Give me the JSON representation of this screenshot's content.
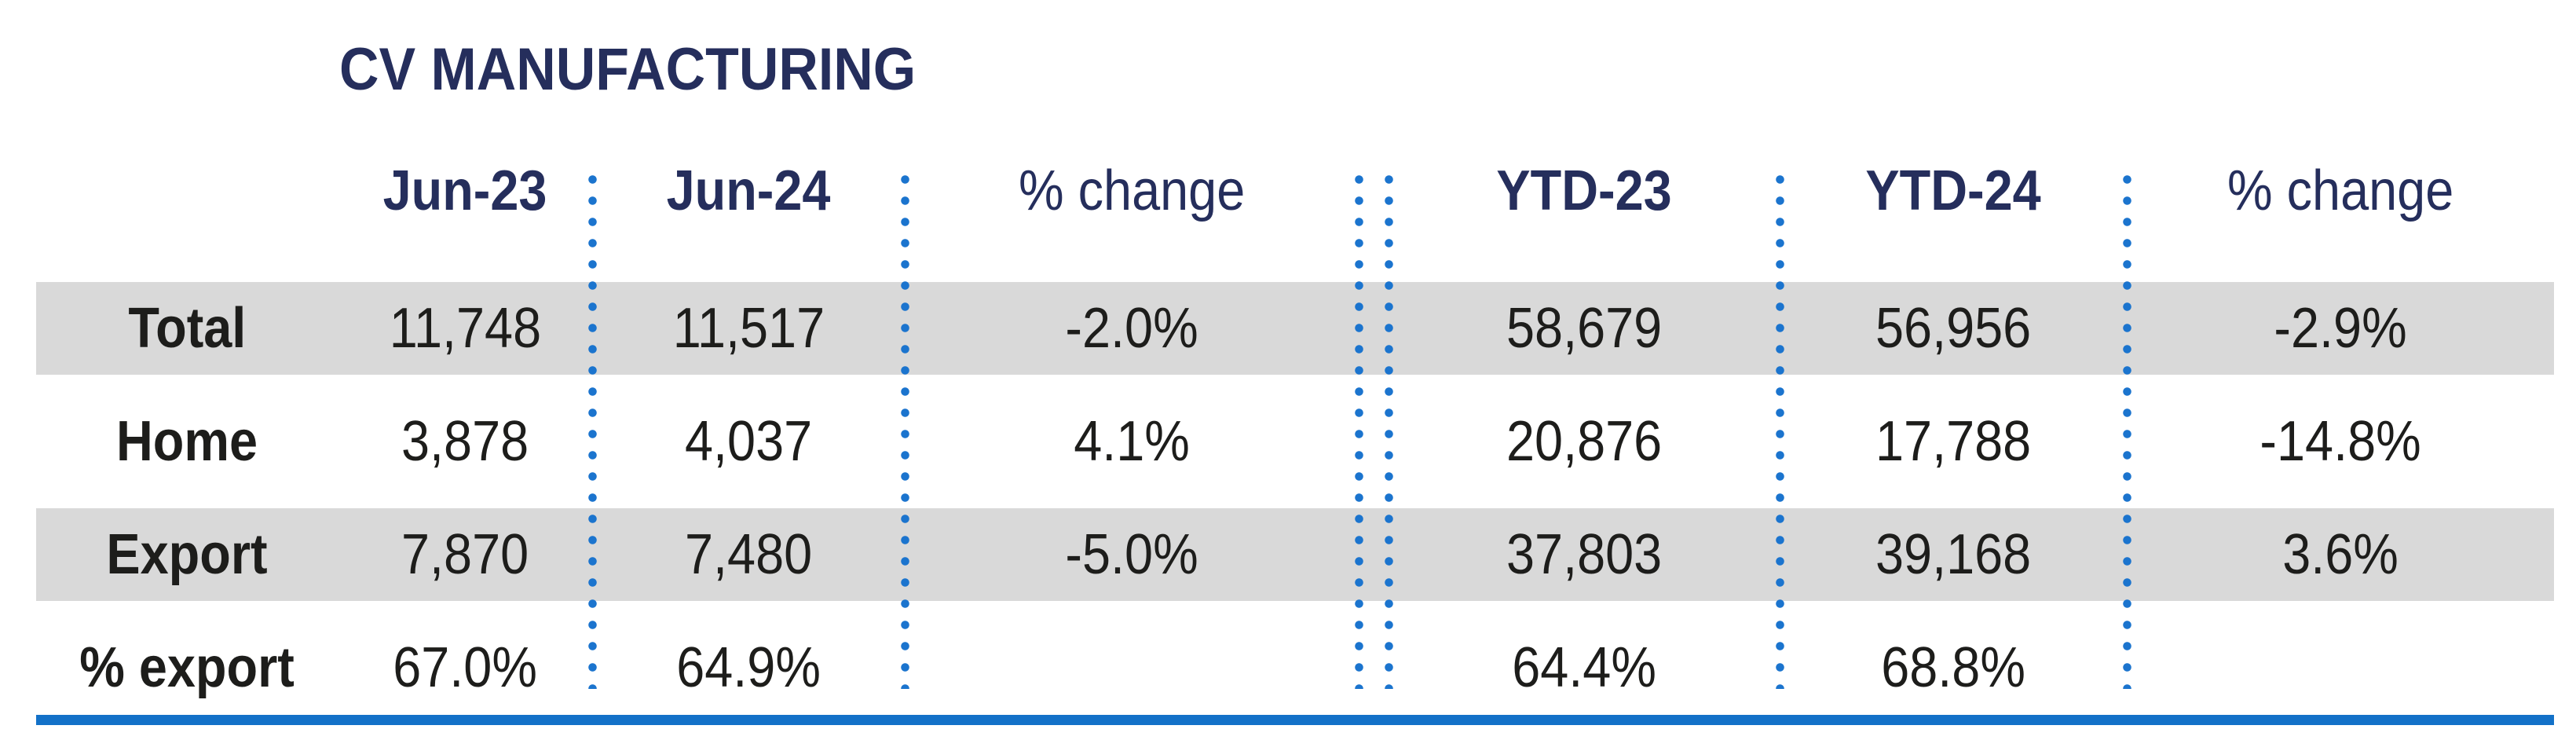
{
  "title": "CV MANUFACTURING",
  "table": {
    "headers": {
      "jun23": "Jun-23",
      "jun24": "Jun-24",
      "chg_month": "% change",
      "ytd23": "YTD-23",
      "ytd24": "YTD-24",
      "chg_ytd": "% change"
    },
    "rows": [
      {
        "label": "Total",
        "jun23": "11,748",
        "jun24": "11,517",
        "chg_month": "-2.0%",
        "ytd23": "58,679",
        "ytd24": "56,956",
        "chg_ytd": "-2.9%"
      },
      {
        "label": "Home",
        "jun23": "3,878",
        "jun24": "4,037",
        "chg_month": "4.1%",
        "ytd23": "20,876",
        "ytd24": "17,788",
        "chg_ytd": "-14.8%"
      },
      {
        "label": "Export",
        "jun23": "7,870",
        "jun24": "7,480",
        "chg_month": "-5.0%",
        "ytd23": "37,803",
        "ytd24": "39,168",
        "chg_ytd": "3.6%"
      },
      {
        "label": "% export",
        "jun23": "67.0%",
        "jun24": "64.9%",
        "chg_month": "",
        "ytd23": "64.4%",
        "ytd24": "68.8%",
        "chg_ytd": ""
      }
    ]
  },
  "colors": {
    "heading_navy": "#252E5C",
    "divider_dot_blue": "#1B74CE",
    "bottom_rule_blue": "#1371C8",
    "row_stripe_gray": "#D9D9D9",
    "body_text": "#1D1D1B"
  }
}
